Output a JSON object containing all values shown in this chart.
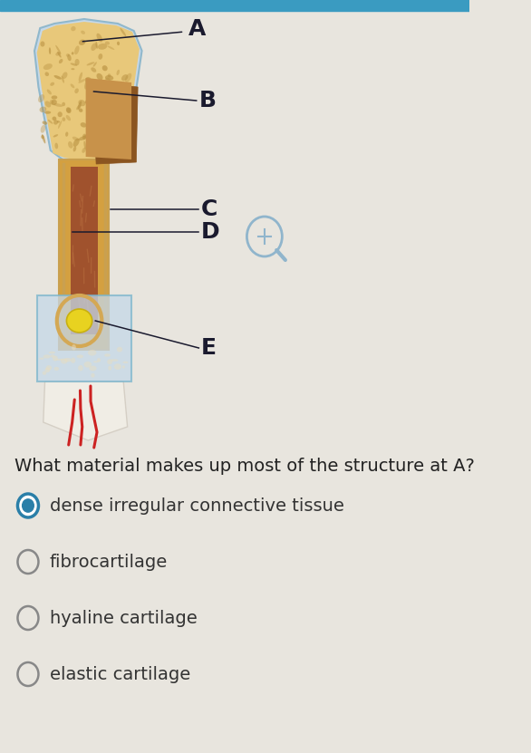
{
  "background_color": "#e8e5de",
  "top_bar_color": "#3a9bc1",
  "top_bar_height": 12,
  "question_text": "What material makes up most of the structure at A?",
  "options": [
    "dense irregular connective tissue",
    "fibrocartilage",
    "hyaline cartilage",
    "elastic cartilage"
  ],
  "selected_option": 0,
  "selected_fill": "#2a7fa8",
  "selected_border": "#2a7fa8",
  "unselected_border": "#888888",
  "option_text_color": "#333333",
  "question_fontsize": 14,
  "option_fontsize": 14,
  "labels": [
    "A",
    "B",
    "C",
    "D",
    "E"
  ],
  "label_fontsize": 18,
  "label_fontweight": "bold",
  "label_color": "#1a1a2e",
  "line_color": "#333333",
  "bone_main_color": "#e8c87a",
  "bone_shadow_color": "#c9a050",
  "bone_dark_color": "#b07830",
  "spongy_color": "#d4a855",
  "spongy_dot_color": "#b89040",
  "compact_color": "#d4a040",
  "medullary_color": "#a0522d",
  "epiphysis_bg": "#c5d8e8",
  "box_color": "#c5d8e8",
  "box_border": "#7ab5cc",
  "marrow_color": "#e8d220",
  "marrow_border": "#c8b010",
  "vessel_color": "#cc2222",
  "tissue_color": "#f0ede5",
  "cut_face_color": "#c8924a",
  "cut_dark_color": "#8b5520"
}
